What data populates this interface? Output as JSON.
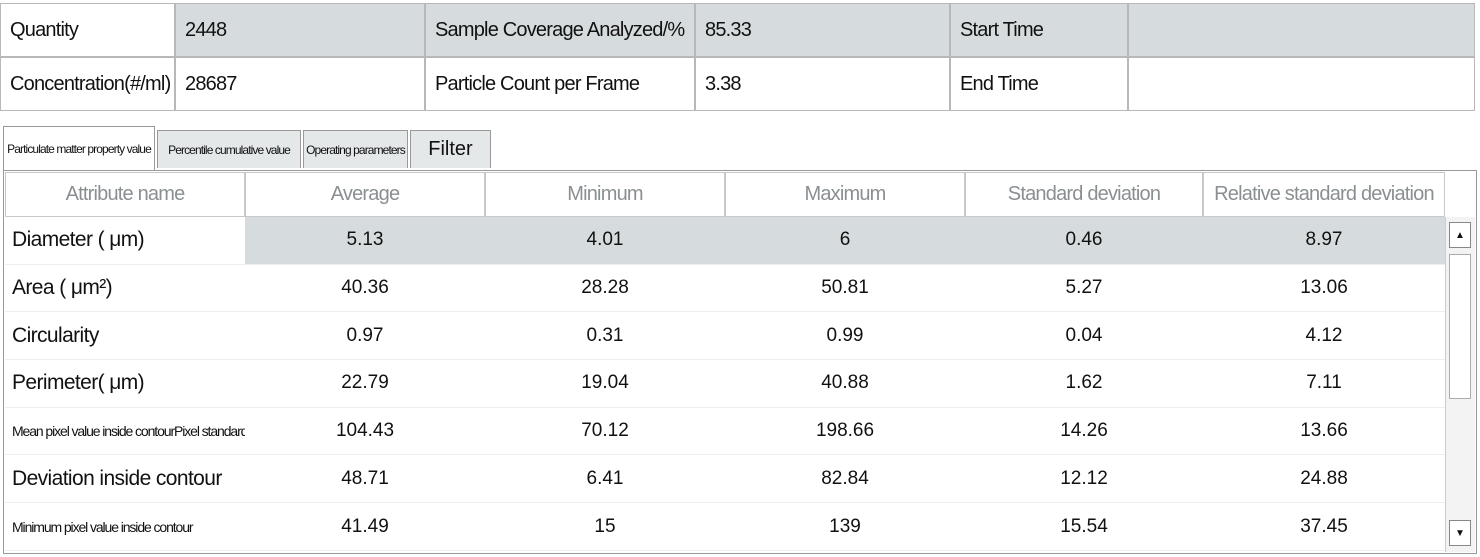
{
  "info": {
    "rows": [
      [
        {
          "label": "Quantity",
          "value": 2448
        },
        {
          "label": "Sample Coverage Analyzed/%",
          "value": 85.33
        },
        {
          "label": "Start Time"
        }
      ],
      [
        {
          "label": "Concentration(#/ml)",
          "value": 28687
        },
        {
          "label": "Particle Count per Frame",
          "value": 3.38
        },
        {
          "label": "End Time"
        }
      ]
    ]
  },
  "tabs": [
    "Particulate matter property value",
    "Percentile cumulative value",
    "Operating parameters",
    "Filter"
  ],
  "table": {
    "columns": [
      "Attribute name",
      "Average",
      "Minimum",
      "Maximum",
      "Standard deviation",
      "Relative standard deviation"
    ],
    "rows": [
      {
        "name": "Diameter ( μm)",
        "values": [
          5.13,
          4.01,
          6,
          0.46,
          8.97
        ]
      },
      {
        "name": "Area ( μm²)",
        "values": [
          40.36,
          28.28,
          50.81,
          5.27,
          13.06
        ]
      },
      {
        "name": "Circularity",
        "values": [
          0.97,
          0.31,
          0.99,
          0.04,
          4.12
        ]
      },
      {
        "name": "Perimeter( μm)",
        "values": [
          22.79,
          19.04,
          40.88,
          1.62,
          7.11
        ]
      },
      {
        "name": "Mean pixel value inside contourPixel standard",
        "values": [
          104.43,
          70.12,
          198.66,
          14.26,
          13.66
        ]
      },
      {
        "name": "Deviation inside contour",
        "values": [
          48.71,
          6.41,
          82.84,
          12.12,
          24.88
        ]
      },
      {
        "name": "Minimum pixel value inside contour",
        "values": [
          41.49,
          15,
          139,
          15.54,
          37.45
        ]
      }
    ]
  }
}
